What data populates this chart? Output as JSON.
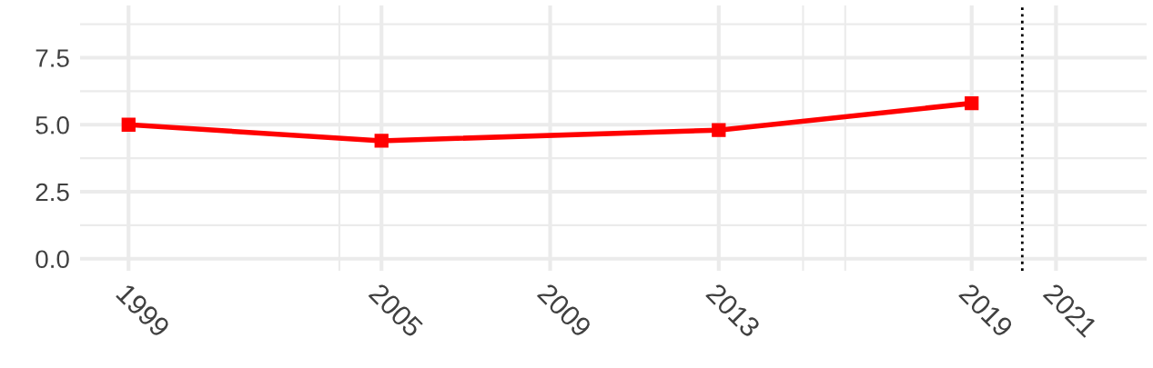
{
  "chart_data": {
    "type": "line",
    "x": [
      1999,
      2005,
      2013,
      2019
    ],
    "series": [
      {
        "color": "#ff0000",
        "values": [
          5.0,
          4.4,
          4.8,
          5.8
        ]
      }
    ],
    "marker": "square",
    "line_style": "solid",
    "xlim": [
      1997.85,
      2023.15
    ],
    "ylim": [
      -0.45,
      9.45
    ],
    "xticks": [
      1999,
      {
        "value": 2004,
        "label": null
      },
      2005,
      2009,
      2013,
      {
        "value": 2015,
        "label": null
      },
      {
        "value": 2016,
        "label": null
      },
      2019,
      2021
    ],
    "yticks": [
      {
        "value": 0,
        "label": "0.0"
      },
      {
        "value": 1.25,
        "label": null
      },
      {
        "value": 2.5,
        "label": "2.5"
      },
      {
        "value": 3.75,
        "label": null
      },
      {
        "value": 5,
        "label": "5.0"
      },
      {
        "value": 6.25,
        "label": null
      },
      {
        "value": 7.5,
        "label": "7.5"
      },
      {
        "value": 8.75,
        "label": null
      }
    ],
    "ref_lines": [
      {
        "axis": "x",
        "value": 2020.2,
        "color": "#000000",
        "line_style": "dotted"
      }
    ],
    "grid": true
  }
}
